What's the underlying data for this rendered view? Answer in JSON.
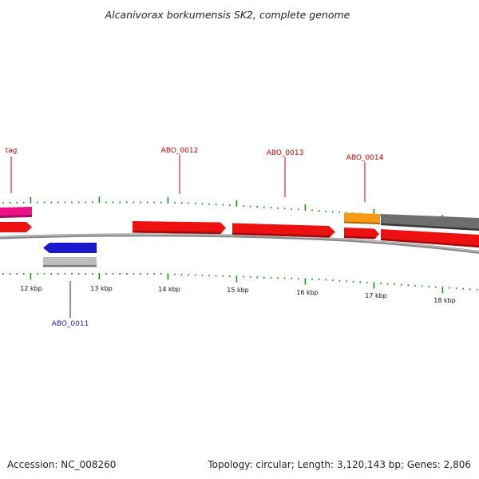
{
  "title": "Alcanivorax borkumensis SK2, complete genome",
  "accession_text": "Accession: NC_008260",
  "topology_text": "Topology: circular; Length: 3,120,143 bp; Genes: 2,806",
  "colors": {
    "forward_gene": "#ee1111",
    "reverse_gene": "#1a1acc",
    "trna": "#ee1188",
    "orange_feature": "#f59a12",
    "gray_feature": "#6e6e6e",
    "light_gray_feature": "#bdbdbd",
    "backbone": "#8a8a8a",
    "ticks": "#1c8a1c",
    "label_red": "#cc0000",
    "label_blue": "#1a1acc"
  },
  "scale_labels": [
    {
      "text": "12 kbp"
    },
    {
      "text": "13 kbp"
    },
    {
      "text": "14 kbp"
    },
    {
      "text": "15 kbp"
    },
    {
      "text": "16 kbp"
    },
    {
      "text": "17 kbp"
    },
    {
      "text": "18 kbp"
    }
  ],
  "gene_labels": [
    {
      "text": "tag",
      "strand": "forward"
    },
    {
      "text": "ABO_0012",
      "strand": "forward"
    },
    {
      "text": "ABO_0013",
      "strand": "forward"
    },
    {
      "text": "ABO_0014",
      "strand": "forward"
    },
    {
      "text": "ABO_0011",
      "strand": "reverse"
    }
  ]
}
